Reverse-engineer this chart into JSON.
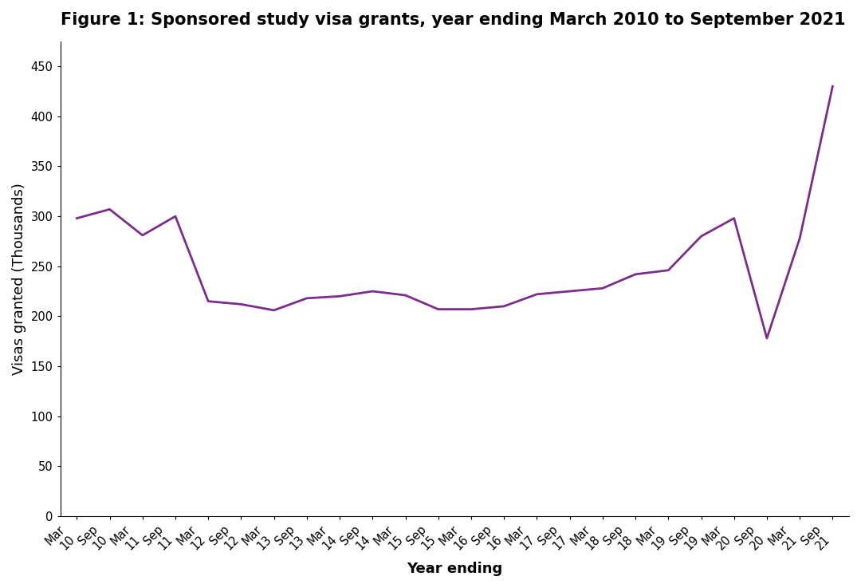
{
  "title": "Figure 1: Sponsored study visa grants, year ending March 2010 to September 2021",
  "xlabel": "Year ending",
  "ylabel": "Visas granted (Thousands)",
  "line_color": "#7B2D8B",
  "line_width": 2.0,
  "background_color": "#ffffff",
  "ylim": [
    0,
    475
  ],
  "yticks": [
    0,
    50,
    100,
    150,
    200,
    250,
    300,
    350,
    400,
    450
  ],
  "x_labels": [
    "Mar\n10",
    "Sep\n10",
    "Mar\n11",
    "Sep\n11",
    "Mar\n12",
    "Sep\n12",
    "Mar\n13",
    "Sep\n13",
    "Mar\n14",
    "Sep\n14",
    "Mar\n15",
    "Sep\n15",
    "Mar\n16",
    "Sep\n16",
    "Mar\n17",
    "Sep\n17",
    "Mar\n18",
    "Sep\n18",
    "Mar\n19",
    "Sep\n19",
    "Mar\n20",
    "Sep\n20",
    "Mar\n21",
    "Sep\n21"
  ],
  "values": [
    298,
    307,
    281,
    300,
    215,
    212,
    206,
    218,
    220,
    225,
    221,
    207,
    207,
    210,
    222,
    225,
    228,
    242,
    246,
    280,
    298,
    178,
    278,
    430
  ],
  "title_fontsize": 15,
  "axis_label_fontsize": 13,
  "tick_fontsize": 10.5
}
